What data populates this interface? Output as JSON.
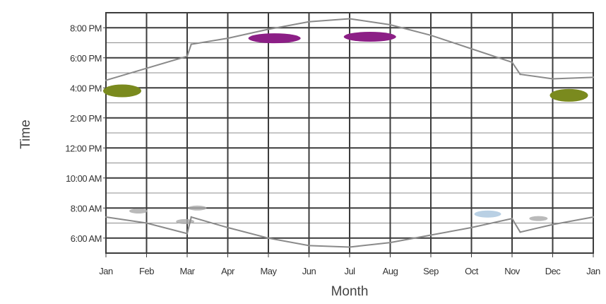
{
  "chart_data": {
    "type": "line",
    "title": "",
    "xlabel": "Month",
    "ylabel": "Time",
    "x_tick_labels": [
      "Jan",
      "Feb",
      "Mar",
      "Apr",
      "May",
      "Jun",
      "Jul",
      "Aug",
      "Sep",
      "Oct",
      "Nov",
      "Dec",
      "Jan"
    ],
    "y_tick_labels": [
      "6:00 AM",
      "8:00 AM",
      "10:00 AM",
      "12:00 PM",
      "2:00 PM",
      "4:00 PM",
      "6:00 PM",
      "8:00 PM"
    ],
    "y_tick_hours": [
      6,
      8,
      10,
      12,
      14,
      16,
      18,
      20
    ],
    "xlim": [
      0,
      12
    ],
    "ylim": [
      5,
      21
    ],
    "grid": true,
    "colors": {
      "grid_major": "#3c3c3c",
      "grid_minor": "#8c8c8c",
      "sun_line": "#8a8a8a",
      "green_marker": "#7a8a1e",
      "purple_marker": "#8c1f86",
      "light_marker": "#a9a9a9",
      "blue_marker": "#a8c4dd"
    },
    "series": [
      {
        "x": [
          0,
          1,
          2,
          2.1,
          3,
          4,
          5,
          6,
          7,
          8,
          9,
          10,
          10.2,
          11,
          12
        ],
        "values": [
          16.5,
          17.3,
          18.1,
          18.9,
          19.3,
          19.9,
          20.4,
          20.6,
          20.2,
          19.5,
          18.6,
          17.7,
          16.9,
          16.6,
          16.7
        ]
      },
      {
        "x": [
          0,
          1,
          2,
          2.1,
          3,
          4,
          5,
          6,
          7,
          8,
          9,
          10,
          10.2,
          11,
          12
        ],
        "values": [
          7.4,
          7.0,
          6.3,
          7.4,
          6.7,
          6.0,
          5.5,
          5.4,
          5.7,
          6.2,
          6.7,
          7.3,
          6.4,
          6.9,
          7.4
        ]
      }
    ],
    "markers": [
      {
        "x": 0.4,
        "y": 15.8,
        "color": "green"
      },
      {
        "x": 11.4,
        "y": 15.5,
        "color": "green"
      },
      {
        "x": 4.15,
        "y": 19.3,
        "color": "purple"
      },
      {
        "x": 6.5,
        "y": 19.4,
        "color": "purple"
      },
      {
        "x": 0.8,
        "y": 7.8,
        "color": "light"
      },
      {
        "x": 2.25,
        "y": 8.0,
        "color": "light"
      },
      {
        "x": 1.95,
        "y": 7.1,
        "color": "light"
      },
      {
        "x": 9.4,
        "y": 7.6,
        "color": "blue"
      },
      {
        "x": 10.65,
        "y": 7.3,
        "color": "light"
      }
    ]
  }
}
